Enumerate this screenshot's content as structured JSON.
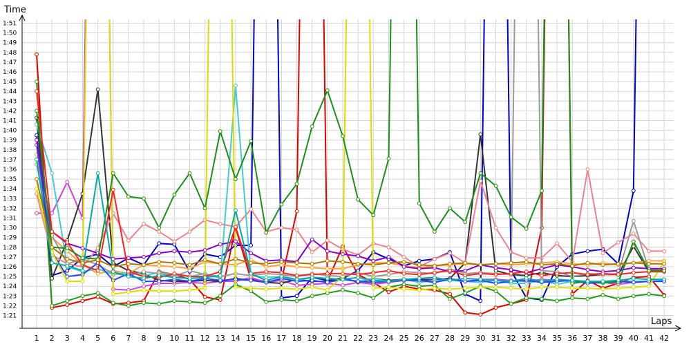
{
  "chart_data": {
    "type": "line",
    "title": "",
    "ylabel": "Time",
    "xlabel": "Laps",
    "x": [
      1,
      2,
      3,
      4,
      5,
      6,
      7,
      8,
      9,
      10,
      11,
      12,
      13,
      14,
      15,
      16,
      17,
      18,
      19,
      20,
      21,
      22,
      23,
      24,
      25,
      26,
      27,
      28,
      29,
      30,
      31,
      32,
      33,
      34,
      35,
      36,
      37,
      38,
      39,
      40,
      41,
      42
    ],
    "x_tick_labels": [
      "1",
      "2",
      "3",
      "4",
      "5",
      "6",
      "7",
      "8",
      "9",
      "10",
      "11",
      "12",
      "13",
      "14",
      "15",
      "16",
      "17",
      "18",
      "19",
      "20",
      "21",
      "22",
      "23",
      "24",
      "25",
      "26",
      "27",
      "28",
      "29",
      "30",
      "31",
      "32",
      "33",
      "34",
      "35",
      "36",
      "37",
      "38",
      "39",
      "40",
      "41",
      "42"
    ],
    "y_tick_labels": [
      "1:21",
      "1:22",
      "1:23",
      "1:24",
      "1:25",
      "1:26",
      "1:27",
      "1:28",
      "1:29",
      "1:30",
      "1:31",
      "1:32",
      "1:33",
      "1:34",
      "1:35",
      "1:36",
      "1:37",
      "1:38",
      "1:39",
      "1:40",
      "1:41",
      "1:42",
      "1:43",
      "1:44",
      "1:45",
      "1:46",
      "1:47",
      "1:48",
      "1:49",
      "1:50",
      "1:51"
    ],
    "ylim_seconds": [
      80,
      113
    ],
    "y_unit": "lap time (m:ss)",
    "grid": true,
    "legend": "none",
    "series": [
      {
        "color": "#e00000",
        "values": [
          107.8,
          81.8,
          82.1,
          82.5,
          82.9,
          82.2,
          82.3,
          82.5,
          85.5,
          85.2,
          84.7,
          82.9,
          82.6,
          90.0,
          84.7,
          84.5,
          84.6,
          91.7,
          200,
          84.5,
          88.1,
          85.2,
          84.4,
          83.4,
          84.0,
          83.7,
          83.6,
          83.2,
          81.3,
          81.1,
          81.8,
          82.2,
          82.6,
          90.0,
          200,
          83.2,
          84.6,
          83.8,
          84.3,
          84.9,
          85.0,
          83.1
        ]
      },
      {
        "color": "#0000c8",
        "values": [
          99.5,
          85.1,
          85.6,
          86.9,
          87.3,
          86.0,
          86.9,
          86.2,
          88.4,
          88.3,
          85.5,
          87.3,
          87.0,
          88.2,
          88.2,
          200,
          82.8,
          83.0,
          84.9,
          84.6,
          84.8,
          85.6,
          87.5,
          86.8,
          86.1,
          86.6,
          86.8,
          87.5,
          83.2,
          82.5,
          200,
          85.6,
          82.8,
          82.6,
          86.0,
          87.3,
          87.6,
          87.8,
          86.3,
          93.8,
          200,
          200
        ]
      },
      {
        "color": "#229922",
        "values": [
          105.0,
          82.0,
          82.5,
          83.0,
          83.3,
          82.3,
          82.0,
          82.3,
          82.2,
          82.5,
          82.4,
          82.3,
          83.0,
          84.2,
          83.5,
          82.4,
          82.6,
          82.5,
          83.0,
          83.3,
          83.6,
          83.3,
          82.8,
          83.9,
          84.2,
          84.0,
          84.1,
          82.7,
          83.3,
          84.0,
          83.5,
          82.2,
          82.8,
          82.7,
          82.5,
          82.8,
          82.7,
          83.1,
          82.7,
          83.0,
          83.2,
          83.0
        ]
      },
      {
        "color": "#cc44dd",
        "values": [
          91.5,
          91.5,
          94.7,
          91.0,
          200,
          83.7,
          83.6,
          84.0,
          84.3,
          84.3,
          84.4,
          84.3,
          84.5,
          84.5,
          84.9,
          84.4,
          84.6,
          84.1,
          84.2,
          84.3,
          84.1,
          84.4,
          84.2,
          84.4,
          84.6,
          84.7,
          84.7,
          84.8,
          84.5,
          84.7,
          84.7,
          84.6,
          84.5,
          84.7,
          84.6,
          84.5,
          84.5,
          84.4,
          84.2,
          84.4,
          84.5,
          84.5
        ]
      },
      {
        "color": "#333333",
        "values": [
          101.3,
          84.8,
          88.7,
          93.5,
          104.2,
          86.4,
          85.6,
          85.3,
          84.6,
          84.5,
          84.5,
          84.6,
          84.5,
          84.8,
          84.6,
          84.4,
          84.3,
          84.7,
          84.5,
          84.5,
          84.9,
          84.4,
          84.8,
          84.6,
          84.7,
          84.7,
          84.6,
          84.8,
          86.4,
          99.6,
          85.6,
          85.2,
          85.1,
          85.4,
          85.1,
          85.0,
          85.1,
          85.2,
          85.2,
          88.1,
          85.5,
          85.5
        ]
      },
      {
        "color": "#f08090",
        "values": [
          93.5,
          87.2,
          86.3,
          86.0,
          87.9,
          91.5,
          88.7,
          90.4,
          89.6,
          88.6,
          89.6,
          90.8,
          90.4,
          90.1,
          91.9,
          89.6,
          90.0,
          89.8,
          87.5,
          88.7,
          87.8,
          87.2,
          88.4,
          88.0,
          87.0,
          86.0,
          86.8,
          87.4,
          86.4,
          94.8,
          90.0,
          87.5,
          86.9,
          86.9,
          88.4,
          86.5,
          96.0,
          87.4,
          88.5,
          89.4,
          87.6,
          87.6
        ]
      },
      {
        "color": "#ffa040",
        "values": [
          97.5,
          89.0,
          87.6,
          86.2,
          85.3,
          85.6,
          85.3,
          86.2,
          86.1,
          86.0,
          85.8,
          86.5,
          86.3,
          86.2,
          86.7,
          86.0,
          86.2,
          86.0,
          85.9,
          85.8,
          85.8,
          86.2,
          86.4,
          86.4,
          86.1,
          85.9,
          86.1,
          86.2,
          86.3,
          86.2,
          86.3,
          86.2,
          86.3,
          86.4,
          86.5,
          86.3,
          86.2,
          86.4,
          86.2,
          86.4,
          86.6,
          86.6
        ]
      },
      {
        "color": "#44cccc",
        "values": [
          100.6,
          95.6,
          86.0,
          85.5,
          85.8,
          85.2,
          85.4,
          85.1,
          85.4,
          85.2,
          85.0,
          85.3,
          84.8,
          104.6,
          85.1,
          84.9,
          85.0,
          84.6,
          84.9,
          84.8,
          84.7,
          84.5,
          84.8,
          84.5,
          84.7,
          84.4,
          84.6,
          84.6,
          84.5,
          84.4,
          84.6,
          84.3,
          84.3,
          84.6,
          84.2,
          84.5,
          84.4,
          84.3,
          84.5,
          84.5,
          84.5,
          84.6
        ]
      },
      {
        "color": "#999999",
        "values": [
          96.5,
          89.2,
          86.3,
          86.8,
          86.2,
          85.3,
          85.1,
          85.5,
          85.3,
          85.0,
          85.6,
          85.2,
          85.0,
          85.3,
          85.1,
          85.3,
          85.2,
          85.0,
          85.3,
          85.1,
          85.0,
          85.4,
          85.0,
          85.2,
          85.5,
          85.4,
          85.3,
          85.8,
          85.3,
          85.4,
          85.3,
          85.2,
          200,
          85.6,
          85.5,
          85.0,
          85.3,
          85.2,
          85.3,
          90.7,
          85.7,
          85.7
        ]
      },
      {
        "color": "#2244ff",
        "values": [
          98.5,
          87.5,
          85.0,
          85.2,
          86.4,
          84.6,
          85.3,
          84.5,
          84.5,
          84.7,
          84.5,
          84.8,
          84.6,
          84.7,
          84.6,
          84.4,
          84.8,
          84.5,
          84.6,
          84.4,
          84.7,
          84.5,
          84.4,
          84.5,
          84.6,
          84.6,
          84.4,
          84.7,
          84.5,
          84.6,
          84.3,
          84.5,
          84.6,
          84.4,
          84.5,
          84.6,
          84.3,
          84.4,
          84.5,
          84.4,
          84.5,
          84.5
        ]
      },
      {
        "color": "#dddd00",
        "values": [
          94.0,
          87.5,
          84.5,
          84.5,
          200,
          83.2,
          83.4,
          83.6,
          83.5,
          83.5,
          83.6,
          83.8,
          200,
          83.9,
          83.8,
          83.7,
          83.8,
          83.7,
          83.9,
          83.6,
          85.0,
          200,
          83.8,
          83.9,
          83.7,
          83.6,
          83.8,
          83.7,
          83.8,
          83.9,
          83.9,
          83.8,
          83.7,
          83.9,
          83.9,
          83.8,
          83.8,
          83.7,
          83.8,
          83.9,
          84.0,
          86.5
        ]
      },
      {
        "color": "#8800cc",
        "values": [
          99.0,
          89.6,
          88.4,
          87.9,
          87.4,
          86.8,
          86.9,
          87.0,
          87.4,
          87.6,
          87.5,
          87.7,
          88.3,
          88.6,
          87.4,
          86.6,
          86.7,
          86.5,
          88.8,
          87.6,
          87.3,
          87.1,
          86.6,
          87.0,
          86.0,
          85.8,
          85.9,
          85.5,
          85.6,
          86.2,
          85.9,
          85.7,
          85.4,
          85.8,
          86.2,
          86.0,
          85.7,
          85.5,
          85.6,
          85.9,
          85.8,
          85.8
        ]
      },
      {
        "color": "#ff2020",
        "values": [
          104.0,
          89.6,
          88.5,
          86.2,
          85.6,
          93.9,
          85.5,
          85.0,
          84.9,
          85.3,
          85.0,
          85.0,
          85.5,
          90.1,
          85.3,
          85.5,
          85.4,
          85.1,
          85.2,
          85.3,
          85.3,
          85.2,
          85.4,
          85.6,
          85.3,
          85.2,
          85.4,
          85.6,
          85.1,
          85.3,
          85.2,
          85.3,
          85.5,
          85.1,
          85.3,
          85.4,
          85.2,
          85.3,
          85.2,
          85.4,
          85.5,
          85.5
        ]
      },
      {
        "color": "#1a8f1a",
        "values": [
          102.0,
          88.0,
          87.9,
          86.9,
          86.8,
          95.6,
          93.2,
          93.0,
          90.0,
          93.4,
          95.6,
          92.0,
          99.9,
          95.0,
          98.9,
          89.5,
          92.4,
          94.5,
          100.4,
          104.1,
          99.4,
          92.9,
          91.3,
          97.1,
          200,
          92.5,
          89.6,
          92.0,
          90.6,
          95.6,
          94.3,
          91.1,
          89.9,
          93.8,
          200,
          84.3,
          84.5,
          84.4,
          84.4,
          88.6,
          85.6,
          85.6
        ]
      },
      {
        "color": "#00aaaa",
        "values": [
          97.0,
          86.4,
          86.1,
          85.6,
          95.6,
          85.5,
          85.0,
          84.8,
          85.1,
          84.9,
          84.8,
          84.9,
          85.1,
          91.8,
          85.3,
          84.6,
          85.0,
          84.7,
          84.9,
          84.8,
          84.7,
          84.9,
          84.6,
          84.5,
          84.7,
          84.8,
          84.9,
          84.6,
          84.8,
          84.7,
          84.6,
          84.5,
          84.8,
          84.5,
          84.7,
          84.6,
          84.5,
          84.5,
          84.6,
          84.8,
          84.7,
          84.7
        ]
      },
      {
        "color": "#aa7700",
        "values": [
          95.0,
          88.0,
          86.8,
          86.4,
          86.7,
          86.0,
          86.3,
          86.2,
          86.5,
          86.4,
          86.2,
          86.7,
          86.3,
          86.8,
          86.4,
          86.3,
          86.5,
          86.4,
          86.3,
          86.6,
          86.5,
          86.3,
          86.2,
          86.4,
          86.5,
          86.2,
          86.1,
          86.3,
          86.4,
          86.2,
          86.3,
          86.4,
          86.5,
          86.2,
          86.3,
          86.1,
          86.4,
          86.2,
          86.3,
          86.4,
          86.3,
          86.3
        ]
      }
    ]
  }
}
